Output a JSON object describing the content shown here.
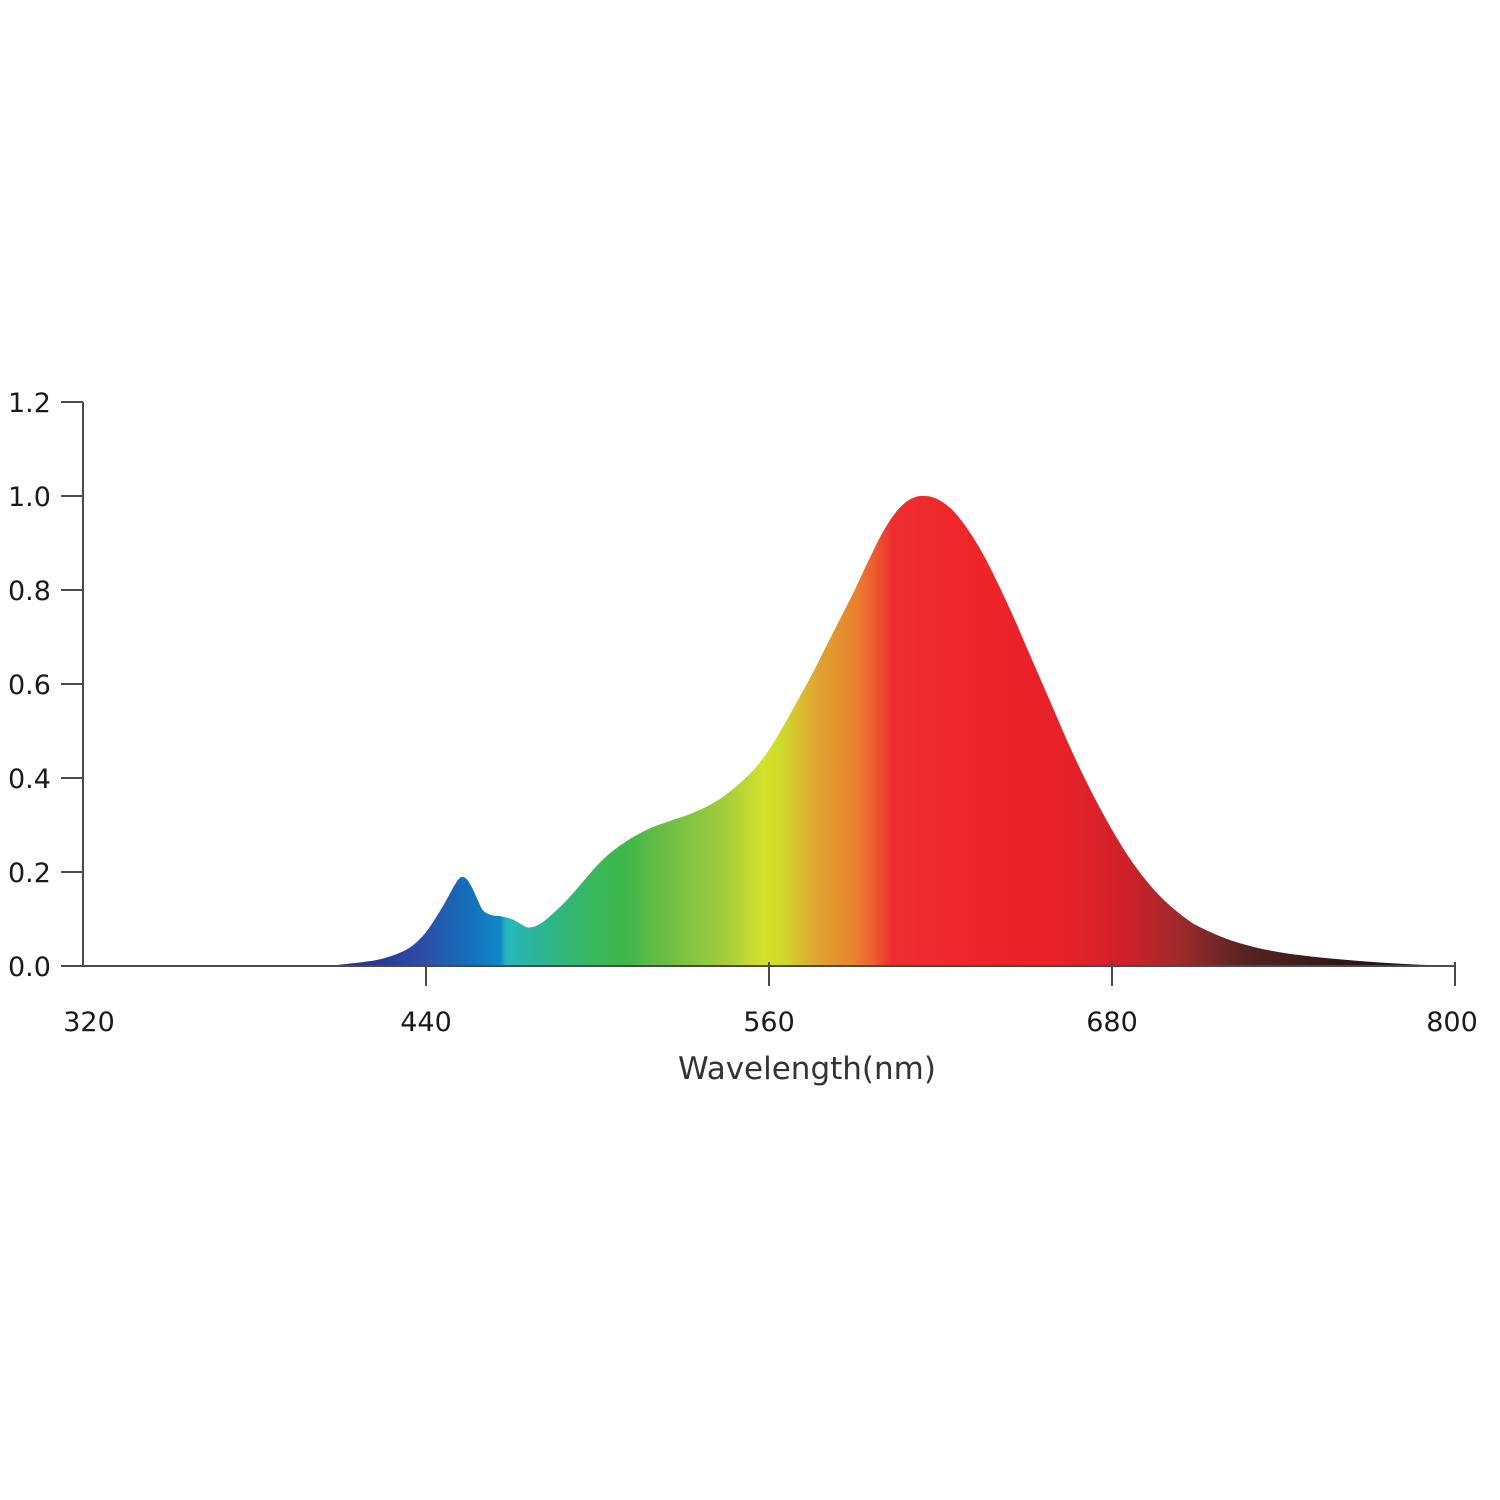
{
  "chart_data": {
    "type": "area",
    "title": "",
    "xlabel": "Wavelength(nm)",
    "ylabel": "",
    "xlim": [
      320,
      800
    ],
    "ylim": [
      0,
      1.2
    ],
    "grid": false,
    "legend": "none",
    "x_ticks": [
      320,
      440,
      560,
      680,
      800
    ],
    "x_tick_labels": [
      "320",
      "440",
      "560",
      "680",
      "800"
    ],
    "y_ticks": [
      0,
      0.2,
      0.4,
      0.6,
      0.8,
      1.0,
      1.2
    ],
    "y_tick_labels": [
      "0.0",
      "0.2",
      "0.4",
      "0.6",
      "0.8",
      "1.0",
      "1.2"
    ],
    "series": [
      {
        "x": [
          320,
          400,
          410,
          420,
          425,
          430,
          435,
          440,
          445,
          448,
          450,
          452,
          454,
          456,
          458,
          460,
          463,
          466,
          470,
          473,
          476,
          480,
          485,
          490,
          495,
          500,
          505,
          510,
          515,
          520,
          525,
          530,
          535,
          540,
          545,
          550,
          555,
          560,
          565,
          570,
          575,
          580,
          585,
          590,
          595,
          600,
          605,
          610,
          615,
          620,
          625,
          630,
          635,
          640,
          645,
          650,
          655,
          660,
          665,
          670,
          675,
          680,
          685,
          690,
          695,
          700,
          705,
          710,
          720,
          730,
          740,
          750,
          760,
          770,
          780,
          790,
          800
        ],
        "values": [
          0.0,
          0.0,
          0.003,
          0.01,
          0.016,
          0.026,
          0.042,
          0.072,
          0.118,
          0.15,
          0.172,
          0.188,
          0.186,
          0.168,
          0.142,
          0.118,
          0.108,
          0.106,
          0.1,
          0.09,
          0.082,
          0.09,
          0.115,
          0.145,
          0.18,
          0.215,
          0.243,
          0.265,
          0.283,
          0.297,
          0.308,
          0.318,
          0.33,
          0.345,
          0.365,
          0.39,
          0.42,
          0.46,
          0.51,
          0.565,
          0.62,
          0.68,
          0.74,
          0.8,
          0.865,
          0.925,
          0.97,
          0.995,
          1.0,
          0.99,
          0.965,
          0.925,
          0.875,
          0.815,
          0.75,
          0.68,
          0.61,
          0.54,
          0.47,
          0.405,
          0.345,
          0.29,
          0.24,
          0.197,
          0.16,
          0.13,
          0.105,
          0.085,
          0.058,
          0.04,
          0.028,
          0.02,
          0.014,
          0.009,
          0.005,
          0.002,
          0.0
        ]
      }
    ],
    "gradient_stops": [
      {
        "x": 400,
        "color": "#232a6e"
      },
      {
        "x": 425,
        "color": "#2a3a95"
      },
      {
        "x": 440,
        "color": "#2d4fa8"
      },
      {
        "x": 452,
        "color": "#1769b6"
      },
      {
        "x": 466,
        "color": "#0f88c8"
      },
      {
        "x": 468,
        "color": "#27b8bd"
      },
      {
        "x": 478,
        "color": "#2bb59a"
      },
      {
        "x": 500,
        "color": "#3ab758"
      },
      {
        "x": 510,
        "color": "#3db74a"
      },
      {
        "x": 520,
        "color": "#62bb46"
      },
      {
        "x": 545,
        "color": "#a5cd3b"
      },
      {
        "x": 558,
        "color": "#d4e12b"
      },
      {
        "x": 564,
        "color": "#cfdc2a"
      },
      {
        "x": 577,
        "color": "#e0a332"
      },
      {
        "x": 590,
        "color": "#e9822e"
      },
      {
        "x": 597,
        "color": "#ec5b2d"
      },
      {
        "x": 603,
        "color": "#ee2e2e"
      },
      {
        "x": 640,
        "color": "#ed2327"
      },
      {
        "x": 665,
        "color": "#e62229"
      },
      {
        "x": 685,
        "color": "#cf2029"
      },
      {
        "x": 703,
        "color": "#a02a2c"
      },
      {
        "x": 725,
        "color": "#5a2421"
      },
      {
        "x": 760,
        "color": "#2b1916"
      },
      {
        "x": 800,
        "color": "#1a1210"
      }
    ]
  }
}
